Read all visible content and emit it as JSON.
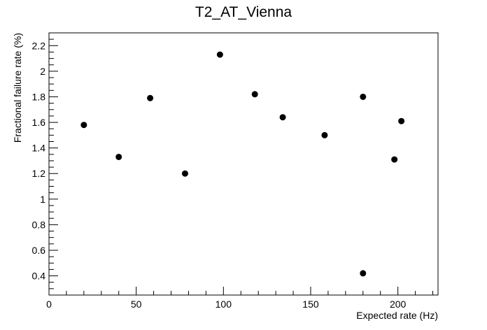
{
  "chart_data": {
    "type": "scatter",
    "title": "T2_AT_Vienna",
    "xlabel": "Expected rate (Hz)",
    "ylabel": "Fractional failure rate (%)",
    "xlim": [
      0,
      223
    ],
    "ylim": [
      0.25,
      2.3
    ],
    "x_ticks": [
      0,
      50,
      100,
      150,
      200
    ],
    "y_ticks": [
      0.4,
      0.6,
      0.8,
      1.0,
      1.2,
      1.4,
      1.6,
      1.8,
      2.0,
      2.2
    ],
    "x_tick_labels": [
      "0",
      "50",
      "100",
      "150",
      "200"
    ],
    "y_tick_labels": [
      "0.4",
      "0.6",
      "0.8",
      "1",
      "1.2",
      "1.4",
      "1.6",
      "1.8",
      "2",
      "2.2"
    ],
    "grid": false,
    "marker_color": "#000000",
    "points": [
      {
        "x": 20,
        "y": 1.58
      },
      {
        "x": 40,
        "y": 1.33
      },
      {
        "x": 58,
        "y": 1.79
      },
      {
        "x": 78,
        "y": 1.2
      },
      {
        "x": 98,
        "y": 2.13
      },
      {
        "x": 118,
        "y": 1.82
      },
      {
        "x": 134,
        "y": 1.64
      },
      {
        "x": 158,
        "y": 1.5
      },
      {
        "x": 180,
        "y": 1.8
      },
      {
        "x": 180,
        "y": 0.42
      },
      {
        "x": 198,
        "y": 1.31
      },
      {
        "x": 202,
        "y": 1.61
      }
    ]
  }
}
